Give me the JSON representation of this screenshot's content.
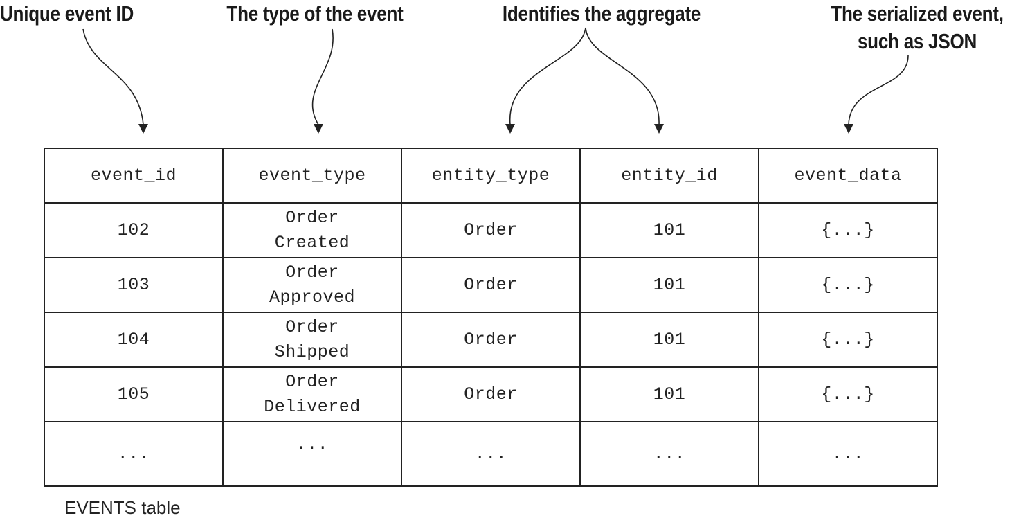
{
  "annotations": {
    "event_id": "Unique event ID",
    "event_type": "The type of the event",
    "aggregate": "Identifies the aggregate",
    "serialized_line1": "The serialized event,",
    "serialized_line2": "such as JSON"
  },
  "table": {
    "columns": [
      "event_id",
      "event_type",
      "entity_type",
      "entity_id",
      "event_data"
    ],
    "rows": [
      {
        "event_id": "102",
        "event_type_1": "Order",
        "event_type_2": "Created",
        "entity_type": "Order",
        "entity_id": "101",
        "event_data": "{...}"
      },
      {
        "event_id": "103",
        "event_type_1": "Order",
        "event_type_2": "Approved",
        "entity_type": "Order",
        "entity_id": "101",
        "event_data": "{...}"
      },
      {
        "event_id": "104",
        "event_type_1": "Order",
        "event_type_2": "Shipped",
        "entity_type": "Order",
        "entity_id": "101",
        "event_data": "{...}"
      },
      {
        "event_id": "105",
        "event_type_1": "Order",
        "event_type_2": "Delivered",
        "entity_type": "Order",
        "entity_id": "101",
        "event_data": "{...}"
      }
    ],
    "ellipsis_row": [
      "...",
      "...",
      "...",
      "...",
      "..."
    ]
  },
  "caption": "EVENTS table",
  "colors": {
    "line": "#222222",
    "background": "#ffffff"
  }
}
